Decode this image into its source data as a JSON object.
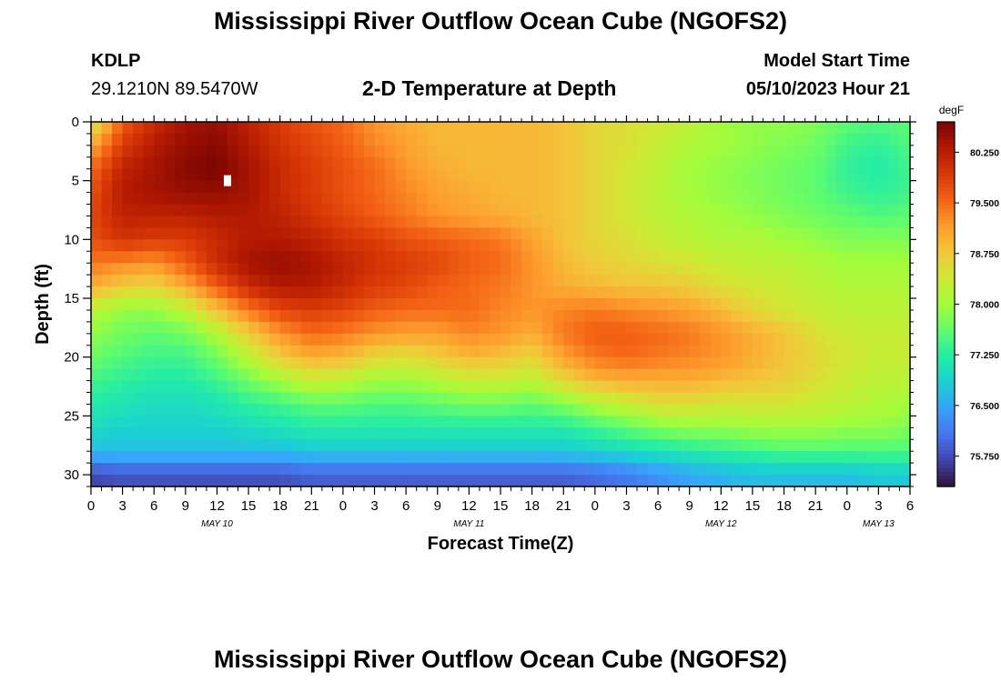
{
  "header": {
    "title": "Mississippi River Outflow Ocean Cube (NGOFS2)",
    "station": "KDLP",
    "coordinates": "29.1210N  89.5470W",
    "model_start_label": "Model Start Time",
    "model_start_value": "05/10/2023 Hour 21"
  },
  "footer": {
    "title": "Mississippi River Outflow Ocean Cube (NGOFS2)"
  },
  "chart_data": {
    "type": "heatmap",
    "title": "2-D Temperature at Depth",
    "xlabel": "Forecast Time(Z)",
    "ylabel": "Depth (ft)",
    "x_tick_labels": [
      "0",
      "3",
      "6",
      "9",
      "12",
      "15",
      "18",
      "21",
      "0",
      "3",
      "6",
      "9",
      "12",
      "15",
      "18",
      "21",
      "0",
      "3",
      "6",
      "9",
      "12",
      "15",
      "18",
      "21",
      "0",
      "3",
      "6"
    ],
    "x_range_hours": [
      0,
      78
    ],
    "date_labels": [
      {
        "label": "MAY 10",
        "hour": 12
      },
      {
        "label": "MAY 11",
        "hour": 36
      },
      {
        "label": "MAY 12",
        "hour": 60
      },
      {
        "label": "MAY 13",
        "hour": 75
      }
    ],
    "y_ticks": [
      0,
      5,
      10,
      15,
      20,
      25,
      30
    ],
    "ylim": [
      0,
      31
    ],
    "y_inverted": true,
    "colorbar": {
      "unit": "degF",
      "range": [
        75.3,
        80.7
      ],
      "tick_labels": [
        "80.250",
        "79.500",
        "78.750",
        "78.000",
        "77.250",
        "76.500",
        "75.750"
      ],
      "tick_values": [
        80.25,
        79.5,
        78.75,
        78.0,
        77.25,
        76.5,
        75.75
      ],
      "colors": [
        "#30123b",
        "#4145ab",
        "#4675ed",
        "#39a2fc",
        "#1bcfd4",
        "#24eca6",
        "#61fc6c",
        "#a4fc3b",
        "#d1e834",
        "#f3c63a",
        "#fe9b2d",
        "#f36315",
        "#d93806",
        "#b11901",
        "#7a0403"
      ]
    },
    "depths": [
      0,
      2,
      4,
      6,
      8,
      10,
      12,
      14,
      16,
      18,
      20,
      22,
      24,
      26,
      28,
      30
    ],
    "hours": [
      0,
      3,
      6,
      9,
      12,
      15,
      18,
      21,
      24,
      27,
      30,
      33,
      36,
      39,
      42,
      45,
      48,
      51,
      54,
      57,
      60,
      63,
      66,
      69,
      72,
      75,
      78
    ],
    "values": [
      [
        78.3,
        79.6,
        80.1,
        80.4,
        80.5,
        80.2,
        79.9,
        79.7,
        79.5,
        79.2,
        79.0,
        78.9,
        78.9,
        78.9,
        78.9,
        78.8,
        78.6,
        78.5,
        78.4,
        78.2,
        78.0,
        77.9,
        77.9,
        77.8,
        77.6,
        77.5,
        77.6
      ],
      [
        79.0,
        79.9,
        80.3,
        80.5,
        80.6,
        80.3,
        80.0,
        79.8,
        79.6,
        79.3,
        79.1,
        78.9,
        78.9,
        78.9,
        78.9,
        78.8,
        78.6,
        78.5,
        78.3,
        78.1,
        78.0,
        77.9,
        77.8,
        77.7,
        77.4,
        77.3,
        77.5
      ],
      [
        79.5,
        80.2,
        80.4,
        80.6,
        80.7,
        80.4,
        80.1,
        79.9,
        79.7,
        79.5,
        79.2,
        79.0,
        78.9,
        78.9,
        78.9,
        78.8,
        78.6,
        78.4,
        78.2,
        78.0,
        77.9,
        77.8,
        77.7,
        77.6,
        77.3,
        77.2,
        77.4
      ],
      [
        79.7,
        80.3,
        80.4,
        80.5,
        80.5,
        80.4,
        80.1,
        79.9,
        79.7,
        79.5,
        79.3,
        79.1,
        79.0,
        78.9,
        78.9,
        78.8,
        78.6,
        78.4,
        78.2,
        78.0,
        77.9,
        77.8,
        77.7,
        77.6,
        77.4,
        77.3,
        77.4
      ],
      [
        79.8,
        80.2,
        80.2,
        80.2,
        80.3,
        80.3,
        80.2,
        80.0,
        79.8,
        79.6,
        79.4,
        79.2,
        79.1,
        79.0,
        78.9,
        78.8,
        78.6,
        78.4,
        78.2,
        78.1,
        78.0,
        77.9,
        77.8,
        77.7,
        77.6,
        77.5,
        77.6
      ],
      [
        79.7,
        80.0,
        79.9,
        79.9,
        80.1,
        80.3,
        80.3,
        80.2,
        80.0,
        79.9,
        79.7,
        79.6,
        79.5,
        79.4,
        79.1,
        78.8,
        78.6,
        78.5,
        78.3,
        78.2,
        78.1,
        78.1,
        78.0,
        77.9,
        77.8,
        77.8,
        77.8
      ],
      [
        79.4,
        79.3,
        79.2,
        79.6,
        80.1,
        80.4,
        80.5,
        80.4,
        80.2,
        80.0,
        79.9,
        79.8,
        79.6,
        79.5,
        79.2,
        78.9,
        78.7,
        78.6,
        78.5,
        78.4,
        78.3,
        78.2,
        78.2,
        78.1,
        78.0,
        78.0,
        78.0
      ],
      [
        79.0,
        78.7,
        78.6,
        79.0,
        79.6,
        80.1,
        80.3,
        80.3,
        80.1,
        79.9,
        79.8,
        79.6,
        79.5,
        79.4,
        79.2,
        79.0,
        78.9,
        78.8,
        78.8,
        78.7,
        78.5,
        78.4,
        78.3,
        78.2,
        78.1,
        78.1,
        78.1
      ],
      [
        78.2,
        77.9,
        77.9,
        78.2,
        78.8,
        79.4,
        79.8,
        79.9,
        79.8,
        79.6,
        79.5,
        79.5,
        79.5,
        79.3,
        79.2,
        79.3,
        79.4,
        79.3,
        79.2,
        79.1,
        78.9,
        78.6,
        78.4,
        78.3,
        78.2,
        78.2,
        78.2
      ],
      [
        77.9,
        77.7,
        77.6,
        77.7,
        78.1,
        78.7,
        79.2,
        79.5,
        79.4,
        79.2,
        79.1,
        79.1,
        79.3,
        79.2,
        79.0,
        79.4,
        79.6,
        79.6,
        79.5,
        79.4,
        79.2,
        79.0,
        78.8,
        78.5,
        78.3,
        78.3,
        78.3
      ],
      [
        77.7,
        77.5,
        77.4,
        77.4,
        77.7,
        78.2,
        78.7,
        79.0,
        78.9,
        78.6,
        78.5,
        78.7,
        78.9,
        78.8,
        78.6,
        79.1,
        79.4,
        79.5,
        79.4,
        79.3,
        79.2,
        79.0,
        78.8,
        78.6,
        78.4,
        78.3,
        78.3
      ],
      [
        77.4,
        77.3,
        77.2,
        77.2,
        77.4,
        77.7,
        78.0,
        78.3,
        78.2,
        78.0,
        78.0,
        78.1,
        78.3,
        78.3,
        78.2,
        78.6,
        78.9,
        79.0,
        79.0,
        79.0,
        78.9,
        78.8,
        78.7,
        78.5,
        78.3,
        78.2,
        78.2
      ],
      [
        77.2,
        77.1,
        77.0,
        77.0,
        77.1,
        77.3,
        77.4,
        77.6,
        77.6,
        77.5,
        77.5,
        77.6,
        77.7,
        77.7,
        77.6,
        77.8,
        78.1,
        78.3,
        78.5,
        78.5,
        78.4,
        78.4,
        78.4,
        78.3,
        78.2,
        78.1,
        78.0
      ],
      [
        77.0,
        76.9,
        76.9,
        76.9,
        76.9,
        77.0,
        77.1,
        77.2,
        77.2,
        77.2,
        77.2,
        77.2,
        77.2,
        77.2,
        77.2,
        77.2,
        77.4,
        77.6,
        77.8,
        77.9,
        77.9,
        78.0,
        78.0,
        78.0,
        77.9,
        77.9,
        77.8
      ],
      [
        76.7,
        76.7,
        76.7,
        76.7,
        76.7,
        76.7,
        76.7,
        76.8,
        76.8,
        76.8,
        76.8,
        76.8,
        76.8,
        76.8,
        76.8,
        76.8,
        76.9,
        77.0,
        77.1,
        77.2,
        77.3,
        77.4,
        77.5,
        77.5,
        77.5,
        77.5,
        77.5
      ],
      [
        75.7,
        75.8,
        75.8,
        75.8,
        75.8,
        75.8,
        75.8,
        75.9,
        75.9,
        75.9,
        75.9,
        75.9,
        75.9,
        75.9,
        75.9,
        75.9,
        76.0,
        76.1,
        76.3,
        76.5,
        76.6,
        76.7,
        76.7,
        76.7,
        76.7,
        76.8,
        76.8
      ]
    ]
  }
}
